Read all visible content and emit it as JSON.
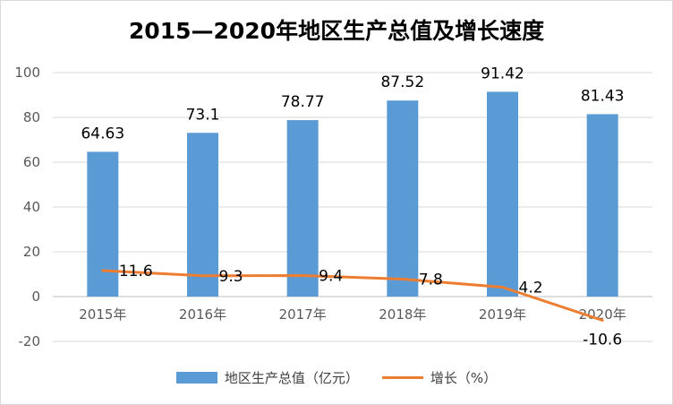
{
  "chart_data": {
    "type": "bar",
    "title": "2015—2020年地区生产总值及增长速度",
    "categories": [
      "2015年",
      "2016年",
      "2017年",
      "2018年",
      "2019年",
      "2020年"
    ],
    "ylim": [
      -20,
      100
    ],
    "yticks": [
      -20,
      0,
      20,
      40,
      60,
      80,
      100
    ],
    "grid": true,
    "legend_position": "bottom",
    "series": [
      {
        "name": "地区生产总值（亿元）",
        "type": "bar",
        "color": "#5b9bd5",
        "values": [
          64.63,
          73.1,
          78.77,
          87.52,
          91.42,
          81.43
        ],
        "labels": [
          "64.63",
          "73.1",
          "78.77",
          "87.52",
          "91.42",
          "81.43"
        ]
      },
      {
        "name": "增长（%）",
        "type": "line",
        "color": "#ed7d31",
        "values": [
          11.6,
          9.3,
          9.4,
          7.8,
          4.2,
          -10.6
        ],
        "labels": [
          "11.6",
          "9.3",
          "9.4",
          "7.8",
          "4.2",
          "-10.6"
        ]
      }
    ]
  }
}
